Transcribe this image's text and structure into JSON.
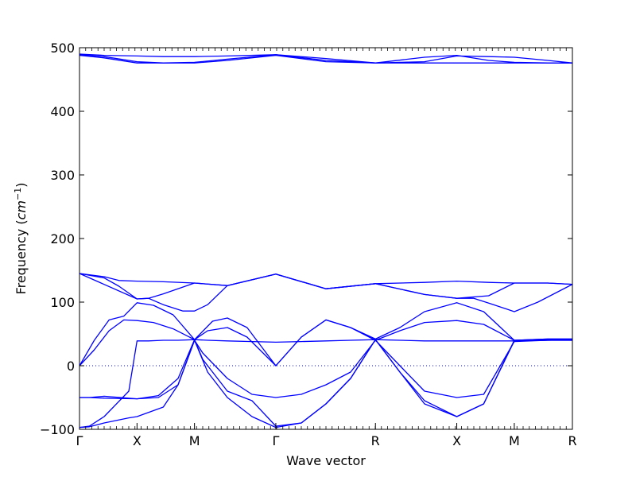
{
  "chart_data": {
    "type": "line",
    "title": "",
    "xlabel": "Wave vector",
    "ylabel": "Frequency ($cm^{-1}$)",
    "ylim": [
      -100,
      500
    ],
    "yticks": [
      -100,
      0,
      100,
      200,
      300,
      400,
      500
    ],
    "xlim": [
      0,
      1
    ],
    "high_symmetry_points": [
      {
        "label": "Γ",
        "x": 0.0
      },
      {
        "label": "X",
        "x": 0.1167
      },
      {
        "label": "M",
        "x": 0.2333
      },
      {
        "label": "Γ",
        "x": 0.3983
      },
      {
        "label": "R",
        "x": 0.6004
      },
      {
        "label": "X",
        "x": 0.7654
      },
      {
        "label": "M",
        "x": 0.8821
      },
      {
        "label": "R",
        "x": 1.0
      }
    ],
    "zero_line": true,
    "grid": false,
    "line_color": "#0000ff",
    "series": [
      {
        "x": [
          0.0,
          0.05,
          0.1167,
          0.17,
          0.2333,
          0.3,
          0.3983,
          0.5,
          0.6004,
          0.7,
          0.7654,
          0.83,
          0.8821,
          0.95,
          1.0
        ],
        "y": [
          490,
          488,
          487,
          486,
          486,
          487,
          489,
          483,
          476,
          478,
          487,
          486,
          485,
          480,
          476
        ]
      },
      {
        "x": [
          0.0,
          0.05,
          0.1167,
          0.17,
          0.2333,
          0.3,
          0.3983,
          0.5,
          0.6004,
          0.7,
          0.7654,
          0.83,
          0.8821,
          0.95,
          1.0
        ],
        "y": [
          489,
          486,
          478,
          476,
          477,
          482,
          489,
          480,
          476,
          476,
          476,
          476,
          476,
          476,
          476
        ]
      },
      {
        "x": [
          0.0,
          0.05,
          0.1167,
          0.17,
          0.2333,
          0.3,
          0.3983,
          0.5,
          0.6004,
          0.7,
          0.7654,
          0.83,
          0.8821,
          0.95,
          1.0
        ],
        "y": [
          488,
          484,
          476,
          476,
          476,
          480,
          488,
          478,
          476,
          485,
          488,
          480,
          477,
          476,
          476
        ]
      },
      {
        "x": [
          0.0,
          0.05,
          0.08,
          0.1167,
          0.17,
          0.2333,
          0.3,
          0.3983,
          0.5,
          0.6004,
          0.7,
          0.7654,
          0.83,
          0.8821,
          0.95,
          1.0
        ],
        "y": [
          145,
          140,
          134,
          133,
          132,
          130,
          126,
          144,
          121,
          129,
          131,
          133,
          131,
          130,
          130,
          128
        ]
      },
      {
        "x": [
          0.0,
          0.05,
          0.08,
          0.1167,
          0.14,
          0.17,
          0.2333,
          0.3,
          0.3983,
          0.5,
          0.6004,
          0.7,
          0.7654,
          0.83,
          0.8821,
          0.95,
          1.0
        ],
        "y": [
          145,
          138,
          125,
          105,
          106,
          113,
          130,
          126,
          144,
          121,
          129,
          112,
          106,
          110,
          130,
          130,
          128
        ]
      },
      {
        "x": [
          0.0,
          0.1167,
          0.14,
          0.17,
          0.21,
          0.2333,
          0.26,
          0.3,
          0.3983,
          0.5,
          0.6004,
          0.7,
          0.7654,
          0.8,
          0.84,
          0.8821,
          0.93,
          1.0
        ],
        "y": [
          145,
          105,
          106,
          96,
          86,
          86,
          96,
          126,
          144,
          121,
          129,
          112,
          106,
          106,
          96,
          85,
          100,
          128
        ]
      },
      {
        "x": [
          0.0,
          0.03,
          0.06,
          0.09,
          0.1167,
          0.15,
          0.19,
          0.2333,
          0.27,
          0.3,
          0.34,
          0.3983,
          0.45,
          0.5,
          0.55,
          0.6004,
          0.65,
          0.7,
          0.7654,
          0.82,
          0.8821,
          0.95,
          1.0
        ],
        "y": [
          0,
          40,
          72,
          78,
          99,
          95,
          80,
          41,
          70,
          75,
          60,
          0,
          45,
          72,
          60,
          42,
          60,
          85,
          99,
          85,
          40,
          42,
          42
        ]
      },
      {
        "x": [
          0.0,
          0.03,
          0.06,
          0.09,
          0.1167,
          0.15,
          0.19,
          0.2333,
          0.26,
          0.3,
          0.34,
          0.3983,
          0.45,
          0.5,
          0.55,
          0.6004,
          0.65,
          0.7,
          0.7654,
          0.82,
          0.8821,
          0.95,
          1.0
        ],
        "y": [
          0,
          25,
          55,
          72,
          71,
          68,
          58,
          41,
          55,
          60,
          45,
          0,
          45,
          72,
          60,
          40,
          55,
          68,
          71,
          65,
          40,
          42,
          42
        ]
      },
      {
        "x": [
          0.0,
          0.02,
          0.05,
          0.1167,
          0.16,
          0.2,
          0.2333,
          0.25,
          0.3,
          0.35,
          0.3983,
          0.45,
          0.5,
          0.55,
          0.6004,
          0.65,
          0.7,
          0.7654,
          0.82,
          0.8821,
          0.95,
          1.0
        ],
        "y": [
          -50,
          -50,
          -48,
          -52,
          -50,
          -30,
          40,
          20,
          -20,
          -45,
          -50,
          -45,
          -30,
          -10,
          40,
          0,
          -40,
          -50,
          -45,
          38,
          40,
          41
        ]
      },
      {
        "x": [
          0.0,
          0.02,
          0.05,
          0.1167,
          0.16,
          0.2,
          0.2333,
          0.25,
          0.3,
          0.35,
          0.3983,
          0.45,
          0.5,
          0.55,
          0.6004,
          0.65,
          0.7,
          0.7654,
          0.82,
          0.8821,
          0.95,
          1.0
        ],
        "y": [
          -50,
          -50,
          -51,
          -52,
          -47,
          -20,
          41,
          10,
          -40,
          -55,
          -95,
          -90,
          -60,
          -20,
          41,
          -10,
          -60,
          -80,
          -60,
          39,
          40,
          40
        ]
      },
      {
        "x": [
          0.0,
          0.02,
          0.05,
          0.1,
          0.1167,
          0.17,
          0.2,
          0.2333,
          0.26,
          0.3,
          0.35,
          0.3983,
          0.45,
          0.5,
          0.55,
          0.6004,
          0.65,
          0.7,
          0.7654,
          0.82,
          0.8821,
          0.95,
          1.0
        ],
        "y": [
          -97,
          -96,
          -90,
          -82,
          -80,
          -65,
          -30,
          40,
          -10,
          -50,
          -80,
          -97,
          -90,
          -60,
          -20,
          41,
          -10,
          -55,
          -80,
          -60,
          40,
          41,
          41
        ]
      },
      {
        "x": [
          0.0,
          0.02,
          0.05,
          0.1,
          0.1167,
          0.14,
          0.17,
          0.2,
          0.2333,
          0.26,
          0.3,
          0.35,
          0.3983,
          0.45,
          0.5,
          0.55,
          0.6004,
          0.65,
          0.7,
          0.7654,
          0.82,
          0.8821,
          0.95,
          1.0
        ],
        "y": [
          -97,
          -95,
          -80,
          -40,
          39,
          39,
          40,
          40,
          41,
          40,
          39,
          38,
          37,
          38,
          39,
          40,
          41,
          40,
          39,
          39,
          39,
          39,
          40,
          40
        ]
      }
    ]
  }
}
